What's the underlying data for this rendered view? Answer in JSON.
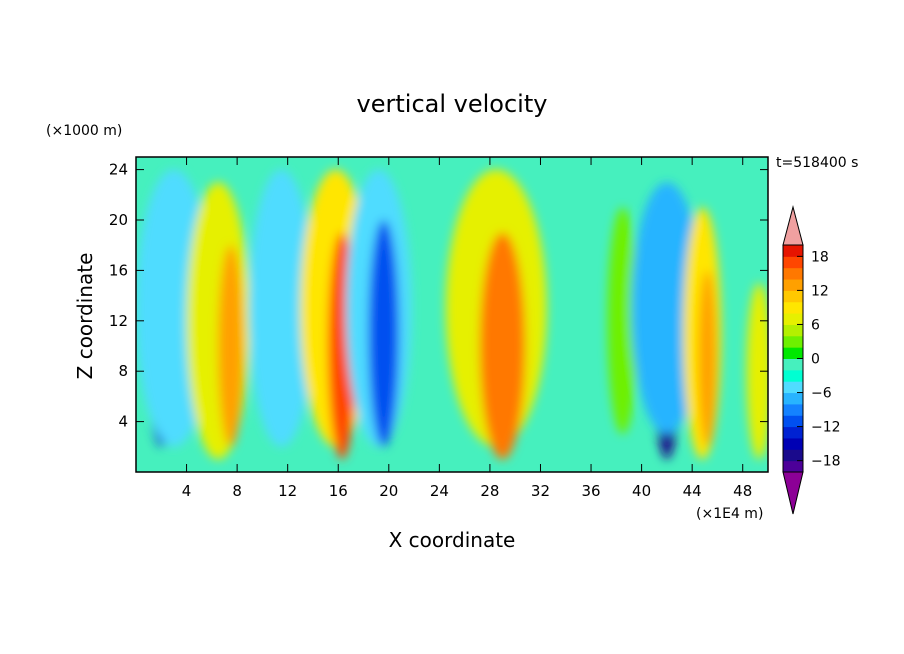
{
  "chart_data": {
    "type": "heatmap",
    "title": "vertical velocity",
    "xlabel": "X coordinate",
    "ylabel": "Z coordinate",
    "x_unit": "(×1E4 m)",
    "y_unit": "(×1000 m)",
    "time_label": "t=518400 s",
    "xlim": [
      0,
      50
    ],
    "ylim": [
      0,
      25
    ],
    "x_ticks": [
      4,
      8,
      12,
      16,
      20,
      24,
      28,
      32,
      36,
      40,
      44,
      48
    ],
    "y_ticks": [
      4,
      8,
      12,
      16,
      20,
      24
    ],
    "colorbar": {
      "levels": [
        -20,
        -18,
        -16,
        -14,
        -12,
        -10,
        -8,
        -6,
        -4,
        -2,
        0,
        2,
        4,
        6,
        8,
        10,
        12,
        14,
        16,
        18,
        20
      ],
      "colors": [
        "#4c0099",
        "#1a0a8c",
        "#0000b4",
        "#0022d2",
        "#0050f0",
        "#1482ff",
        "#28b4ff",
        "#50dcff",
        "#00ffd2",
        "#46f0be",
        "#00e800",
        "#6ef000",
        "#b4f000",
        "#e6f000",
        "#ffe600",
        "#ffc800",
        "#ffa000",
        "#ff7800",
        "#ff4600",
        "#e61400"
      ],
      "under_color": "#8c0096",
      "over_color": "#f0a0a0",
      "tick_labels": [
        "18",
        "12",
        "6",
        "0",
        "−6",
        "−12",
        "−18"
      ],
      "tick_values": [
        18,
        12,
        6,
        0,
        -6,
        -12,
        -18
      ]
    },
    "cells": [
      {
        "x": 2.0,
        "w": 1.2,
        "z": 11,
        "h": 9,
        "v": -14
      },
      {
        "x": 3.0,
        "w": 3.0,
        "z": 13,
        "h": 11,
        "v": -5
      },
      {
        "x": 6.5,
        "w": 2.5,
        "z": 12,
        "h": 11,
        "v": 6
      },
      {
        "x": 7.5,
        "w": 1.0,
        "z": 10,
        "h": 8,
        "v": 12
      },
      {
        "x": 11.5,
        "w": 1.0,
        "z": 11,
        "h": 9,
        "v": -13
      },
      {
        "x": 11.5,
        "w": 2.6,
        "z": 13,
        "h": 11,
        "v": -5
      },
      {
        "x": 15.8,
        "w": 2.8,
        "z": 13,
        "h": 11,
        "v": 8
      },
      {
        "x": 16.3,
        "w": 1.1,
        "z": 10,
        "h": 9,
        "v": 16
      },
      {
        "x": 19.2,
        "w": 2.6,
        "z": 13,
        "h": 11,
        "v": -6
      },
      {
        "x": 19.6,
        "w": 1.2,
        "z": 11,
        "h": 9,
        "v": -12
      },
      {
        "x": 28.5,
        "w": 4.0,
        "z": 13,
        "h": 11,
        "v": 6
      },
      {
        "x": 29.0,
        "w": 1.8,
        "z": 10,
        "h": 9,
        "v": 15
      },
      {
        "x": 38.5,
        "w": 1.2,
        "z": 12,
        "h": 9,
        "v": 3
      },
      {
        "x": 42.0,
        "w": 1.2,
        "z": 11,
        "h": 10,
        "v": -17
      },
      {
        "x": 42.0,
        "w": 2.8,
        "z": 13,
        "h": 10,
        "v": -7
      },
      {
        "x": 44.8,
        "w": 1.5,
        "z": 11,
        "h": 10,
        "v": 8
      },
      {
        "x": 45.2,
        "w": 0.7,
        "z": 9,
        "h": 7,
        "v": 13
      },
      {
        "x": 49.3,
        "w": 1.0,
        "z": 8,
        "h": 7,
        "v": 7
      }
    ]
  }
}
